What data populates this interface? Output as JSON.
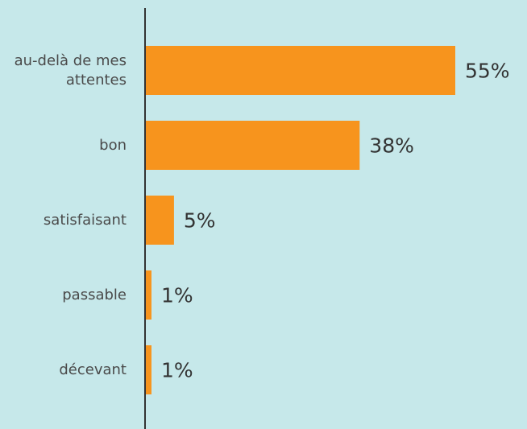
{
  "chart_data": {
    "type": "bar",
    "orientation": "horizontal",
    "categories": [
      "au-delà de mes attentes",
      "bon",
      "satisfaisant",
      "passable",
      "décevant"
    ],
    "values": [
      55,
      38,
      5,
      1,
      1
    ],
    "value_labels": [
      "55%",
      "38%",
      "5%",
      "1%",
      "1%"
    ],
    "color": "#f7941d"
  }
}
